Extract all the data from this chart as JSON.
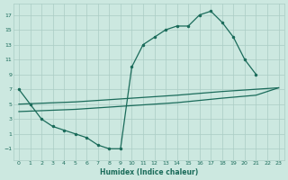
{
  "xlabel": "Humidex (Indice chaleur)",
  "bg_color": "#cce8e0",
  "grid_color": "#aaccC4",
  "line_color": "#1a6b5a",
  "xlim": [
    -0.5,
    23.5
  ],
  "ylim": [
    -2.5,
    18.5
  ],
  "xticks": [
    0,
    1,
    2,
    3,
    4,
    5,
    6,
    7,
    8,
    9,
    10,
    11,
    12,
    13,
    14,
    15,
    16,
    17,
    18,
    19,
    20,
    21,
    22,
    23
  ],
  "yticks": [
    -1,
    1,
    3,
    5,
    7,
    9,
    11,
    13,
    15,
    17
  ],
  "line1_x": [
    0,
    1,
    2,
    3,
    4,
    5,
    6,
    7,
    8,
    9,
    10,
    11,
    12,
    13,
    14,
    15,
    16,
    17,
    18,
    19,
    20,
    21
  ],
  "line1_y": [
    7,
    5,
    3,
    2,
    1.5,
    1,
    0.5,
    -0.5,
    -1,
    -1,
    10,
    13,
    14,
    15,
    15.5,
    15.5,
    17,
    17.5,
    16,
    14,
    11,
    9
  ],
  "line2_x": [
    0,
    5,
    10,
    14,
    18,
    21,
    23
  ],
  "line2_y": [
    5,
    5.3,
    5.8,
    6.2,
    6.7,
    7.0,
    7.2
  ],
  "line3_x": [
    0,
    5,
    10,
    14,
    18,
    21,
    23
  ],
  "line3_y": [
    4,
    4.3,
    4.8,
    5.2,
    5.8,
    6.2,
    7.2
  ]
}
